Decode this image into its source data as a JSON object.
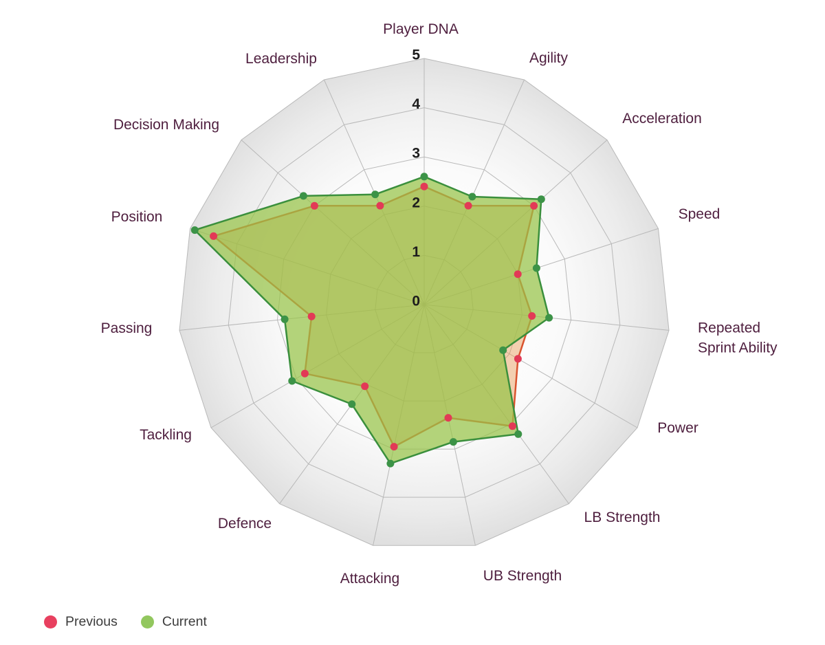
{
  "chart_data": {
    "type": "radar",
    "title": "",
    "categories": [
      "Player DNA",
      "Agility",
      "Acceleration",
      "Speed",
      "Repeated Sprint Ability",
      "Power",
      "LB Strength",
      "UB Strength",
      "Attacking",
      "Defence",
      "Tackling",
      "Passing",
      "Position",
      "Decision Making",
      "Leadership"
    ],
    "series": [
      {
        "name": "Previous",
        "values": [
          2.4,
          2.2,
          3.0,
          2.0,
          2.2,
          2.2,
          3.05,
          2.35,
          2.95,
          2.05,
          2.8,
          2.3,
          4.5,
          3.0,
          2.2
        ],
        "line_color": "#d9532e",
        "marker_color": "#e23a56",
        "fill_color": "rgba(233,152,85,0.45)"
      },
      {
        "name": "Current",
        "values": [
          2.6,
          2.4,
          3.2,
          2.4,
          2.55,
          1.85,
          3.25,
          2.85,
          3.3,
          2.5,
          3.1,
          2.85,
          4.9,
          3.3,
          2.45
        ],
        "line_color": "#3a8f3c",
        "marker_color": "#3c9347",
        "fill_color": "rgba(151,195,72,0.72)"
      }
    ],
    "r_axis": {
      "min": 0,
      "max": 5,
      "ticks": [
        0,
        1,
        2,
        3,
        4,
        5
      ]
    },
    "grid": {
      "shape": "polygon",
      "sides": 15,
      "line_color": "#b8b8b8",
      "bg_inner": "#ffffff",
      "bg_outer": "#e0e0e0",
      "grid_on": true
    },
    "label_wrap": {
      "Repeated Sprint Ability": [
        "Repeated",
        "Sprint Ability"
      ]
    },
    "legend_position": "bottom-left"
  },
  "legend": {
    "items": [
      {
        "label": "Previous",
        "color": "#e8405f"
      },
      {
        "label": "Current",
        "color": "#92c75e"
      }
    ]
  },
  "colors": {
    "axis_label": "#4e1e3e",
    "tick_label": "#1d1d1d",
    "legend_text": "#3c3c3c"
  }
}
